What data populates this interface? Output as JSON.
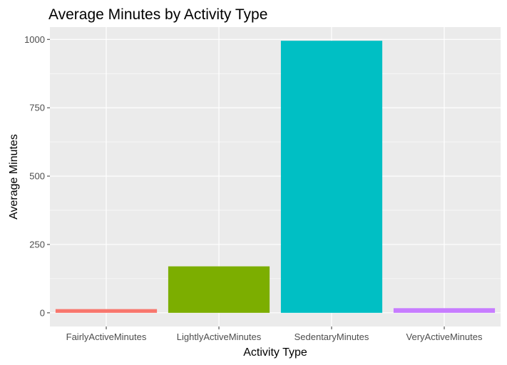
{
  "chart_data": {
    "type": "bar",
    "title": "Average Minutes by Activity Type",
    "xlabel": "Activity Type",
    "ylabel": "Average Minutes",
    "categories": [
      "FairlyActiveMinutes",
      "LightlyActiveMinutes",
      "SedentaryMinutes",
      "VeryActiveMinutes"
    ],
    "values": [
      13.6,
      170,
      995,
      17
    ],
    "colors": [
      "#F8766D",
      "#7CAE00",
      "#00BFC4",
      "#C77CFF"
    ],
    "ylim": [
      -50,
      1045
    ],
    "yticks": [
      0,
      250,
      500,
      750,
      1000
    ],
    "grid": true,
    "panel_background": "#EBEBEB",
    "legend": "none"
  }
}
